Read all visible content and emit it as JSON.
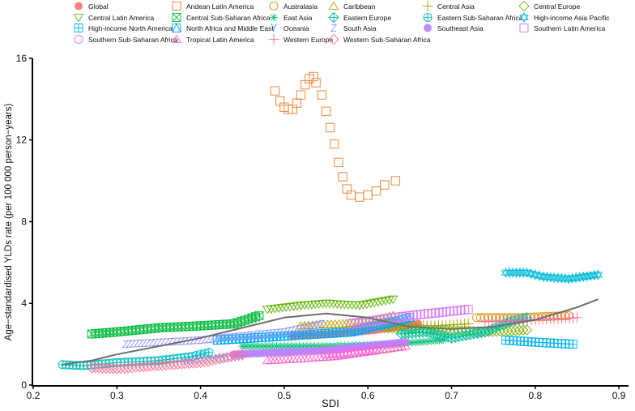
{
  "chart_data": {
    "type": "scatter",
    "title": "",
    "xlabel": "SDI",
    "ylabel": "Age−standardised YLDs rate (per 100 000 person−years)",
    "xlim": [
      0.2,
      0.91
    ],
    "ylim": [
      0,
      16
    ],
    "xticks": [
      "0.2",
      "0.3",
      "0.4",
      "0.5",
      "0.6",
      "0.7",
      "0.8",
      "0.9"
    ],
    "xtick_values": [
      0.2,
      0.3,
      0.4,
      0.5,
      0.6,
      0.7,
      0.8,
      0.9
    ],
    "yticks": [
      "0",
      "4",
      "8",
      "12",
      "16"
    ],
    "ytick_values": [
      0,
      4,
      8,
      12,
      16
    ],
    "grid": false,
    "legend_position": "top",
    "series": [
      {
        "name": "Global",
        "marker": "circle-filled",
        "color": "#F8766D",
        "x": [
          0.51,
          0.56,
          0.61,
          0.66
        ],
        "y": [
          2.4,
          2.5,
          2.7,
          3.0
        ]
      },
      {
        "name": "Andean Latin America",
        "marker": "square",
        "color": "#EA8331",
        "x": [
          0.489,
          0.495,
          0.5,
          0.505,
          0.51,
          0.515,
          0.52,
          0.525,
          0.53,
          0.535,
          0.538,
          0.545,
          0.55,
          0.555,
          0.56,
          0.565,
          0.57,
          0.575,
          0.58,
          0.59,
          0.6,
          0.61,
          0.62,
          0.633
        ],
        "y": [
          14.4,
          13.9,
          13.6,
          13.5,
          13.5,
          13.8,
          14.2,
          14.7,
          15.0,
          15.1,
          14.8,
          14.2,
          13.4,
          12.6,
          11.8,
          10.9,
          10.2,
          9.6,
          9.3,
          9.2,
          9.3,
          9.5,
          9.8,
          10.0
        ]
      },
      {
        "name": "Australasia",
        "marker": "circle",
        "color": "#D89000",
        "x": [
          0.73,
          0.78,
          0.84
        ],
        "y": [
          3.3,
          3.3,
          3.4
        ]
      },
      {
        "name": "Caribbean",
        "marker": "triangle",
        "color": "#C09B00",
        "x": [
          0.52,
          0.57,
          0.6,
          0.63
        ],
        "y": [
          2.9,
          3.0,
          3.1,
          3.4
        ]
      },
      {
        "name": "Central Asia",
        "marker": "plus",
        "color": "#A3A500",
        "x": [
          0.63,
          0.68,
          0.72
        ],
        "y": [
          2.9,
          2.9,
          3.0
        ]
      },
      {
        "name": "Central Europe",
        "marker": "diamond",
        "color": "#7CAE00",
        "x": [
          0.62,
          0.68,
          0.74,
          0.79
        ],
        "y": [
          2.8,
          2.7,
          2.6,
          2.7
        ]
      },
      {
        "name": "Central Latin America",
        "marker": "triangle-down",
        "color": "#5EB300",
        "x": [
          0.48,
          0.52,
          0.55,
          0.59,
          0.63
        ],
        "y": [
          3.7,
          3.9,
          4.0,
          3.9,
          4.2
        ]
      },
      {
        "name": "Central Sub-Saharan Africa",
        "marker": "square-x",
        "color": "#00BA38",
        "x": [
          0.27,
          0.3,
          0.35,
          0.4,
          0.44,
          0.47
        ],
        "y": [
          2.5,
          2.6,
          2.8,
          2.9,
          3.0,
          3.4
        ]
      },
      {
        "name": "East Asia",
        "marker": "asterisk",
        "color": "#00BF74",
        "x": [
          0.45,
          0.55,
          0.63,
          0.69
        ],
        "y": [
          1.9,
          1.9,
          2.0,
          2.2
        ]
      },
      {
        "name": "Eastern Europe",
        "marker": "diamond-plus",
        "color": "#00C19F",
        "x": [
          0.64,
          0.67,
          0.7,
          0.74,
          0.77,
          0.79
        ],
        "y": [
          2.5,
          2.6,
          2.3,
          2.6,
          3.1,
          3.3
        ]
      },
      {
        "name": "Eastern Sub-Saharan Africa",
        "marker": "circle-plus",
        "color": "#00BFC4",
        "x": [
          0.235,
          0.26,
          0.3,
          0.35,
          0.39,
          0.41
        ],
        "y": [
          1.0,
          0.95,
          1.1,
          1.2,
          1.4,
          1.6
        ]
      },
      {
        "name": "High-income Asia Pacific",
        "marker": "star",
        "color": "#00BCD8",
        "x": [
          0.765,
          0.79,
          0.81,
          0.84,
          0.875
        ],
        "y": [
          5.5,
          5.5,
          5.3,
          5.2,
          5.4
        ]
      },
      {
        "name": "High-income North America",
        "marker": "square-plus",
        "color": "#00B4EF",
        "x": [
          0.765,
          0.8,
          0.845
        ],
        "y": [
          2.2,
          2.1,
          2.0
        ]
      },
      {
        "name": "North Africa and Middle East",
        "marker": "square-triangle",
        "color": "#00A9FF",
        "x": [
          0.42,
          0.5,
          0.58,
          0.65
        ],
        "y": [
          2.2,
          2.4,
          2.6,
          3.3
        ]
      },
      {
        "name": "Oceania",
        "marker": "y",
        "color": "#35A2FF",
        "x": [
          0.38,
          0.42,
          0.45
        ],
        "y": [
          1.2,
          1.3,
          1.4
        ]
      },
      {
        "name": "South Asia",
        "marker": "z",
        "color": "#8F91FF",
        "x": [
          0.31,
          0.4,
          0.5,
          0.545
        ],
        "y": [
          2.0,
          2.2,
          2.6,
          3.0
        ]
      },
      {
        "name": "Southeast Asia",
        "marker": "circle-filled",
        "color": "#B983FF",
        "x": [
          0.44,
          0.55,
          0.645
        ],
        "y": [
          1.5,
          1.7,
          2.1
        ]
      },
      {
        "name": "Southern Latin America",
        "marker": "square",
        "color": "#DB72FB",
        "x": [
          0.58,
          0.65,
          0.72
        ],
        "y": [
          3.0,
          3.4,
          3.7
        ]
      },
      {
        "name": "Southern Sub-Saharan Africa",
        "marker": "circle",
        "color": "#F066EA",
        "x": [
          0.55,
          0.58,
          0.61
        ],
        "y": [
          1.5,
          1.6,
          1.7
        ]
      },
      {
        "name": "Tropical Latin America",
        "marker": "triangle",
        "color": "#FF61C3",
        "x": [
          0.48,
          0.56,
          0.645
        ],
        "y": [
          1.2,
          1.4,
          1.9
        ]
      },
      {
        "name": "Western Europe",
        "marker": "plus",
        "color": "#FF67A4",
        "x": [
          0.74,
          0.8,
          0.85
        ],
        "y": [
          3.1,
          3.2,
          3.3
        ]
      },
      {
        "name": "Western Sub-Saharan Africa",
        "marker": "diamond",
        "color": "#FF6C91",
        "x": [
          0.27,
          0.3,
          0.35,
          0.4,
          0.45
        ],
        "y": [
          0.85,
          0.8,
          0.95,
          1.1,
          1.5
        ]
      }
    ],
    "fit_line": {
      "color": "#6E6E6E",
      "x": [
        0.235,
        0.27,
        0.3,
        0.35,
        0.4,
        0.45,
        0.5,
        0.55,
        0.6,
        0.65,
        0.7,
        0.75,
        0.8,
        0.85,
        0.875
      ],
      "y": [
        1.0,
        1.2,
        1.5,
        1.9,
        2.3,
        2.8,
        3.3,
        3.5,
        3.3,
        2.85,
        2.75,
        2.85,
        3.2,
        3.8,
        4.2
      ]
    }
  }
}
